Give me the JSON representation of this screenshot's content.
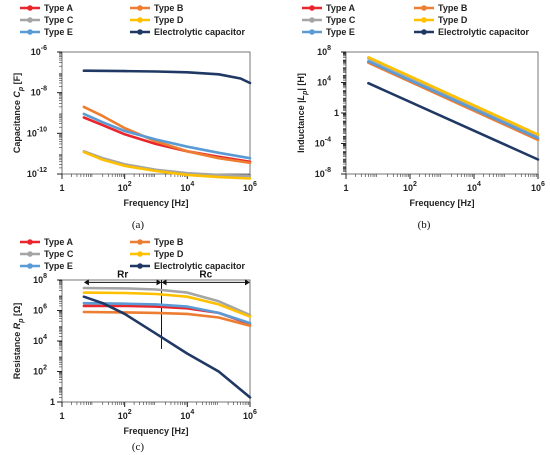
{
  "palette": {
    "Type A": "#e8262c",
    "Type B": "#ed7d31",
    "Type C": "#a5a5a5",
    "Type D": "#ffc000",
    "Type E": "#5b9bd5",
    "Electrolytic capacitor": "#203864"
  },
  "chart_data": [
    {
      "type": "line",
      "panel_label": "(a)",
      "xlabel": "Frequency  [Hz]",
      "ylabel_parts": [
        "Capacitance  ",
        "C",
        "p",
        "  [F]"
      ],
      "x_scale": "log",
      "y_scale": "log",
      "xlim": [
        1,
        1000000
      ],
      "ylim": [
        1e-12,
        1e-06
      ],
      "x_ticks": [
        {
          "v": 1,
          "b": "1",
          "e": ""
        },
        {
          "v": 100,
          "b": "10",
          "e": "2"
        },
        {
          "v": 10000,
          "b": "10",
          "e": "4"
        },
        {
          "v": 1000000,
          "b": "10",
          "e": "6"
        }
      ],
      "y_ticks": [
        {
          "v": 1e-12,
          "b": "10",
          "e": "-12"
        },
        {
          "v": 1e-10,
          "b": "10",
          "e": "-10"
        },
        {
          "v": 1e-08,
          "b": "10",
          "e": "-8"
        },
        {
          "v": 1e-06,
          "b": "10",
          "e": "-6"
        }
      ],
      "legend": "top",
      "series": [
        {
          "name": "Type A",
          "x": [
            5,
            20,
            100,
            1000,
            10000,
            100000,
            1000000
          ],
          "y": [
            6e-10,
            2.5e-10,
            9e-11,
            3e-11,
            1.3e-11,
            7e-12,
            4e-12
          ]
        },
        {
          "name": "Type B",
          "x": [
            5,
            20,
            100,
            1000,
            10000,
            100000,
            1000000
          ],
          "y": [
            2e-09,
            7e-10,
            1.8e-10,
            4e-11,
            1.3e-11,
            6e-12,
            3.5e-12
          ]
        },
        {
          "name": "Type C",
          "x": [
            5,
            20,
            100,
            1000,
            10000,
            100000,
            1000000
          ],
          "y": [
            1.3e-11,
            6e-12,
            3e-12,
            1.6e-12,
            1.1e-12,
            9e-13,
            8e-13
          ]
        },
        {
          "name": "Type D",
          "x": [
            5,
            20,
            100,
            1000,
            10000,
            100000,
            1000000
          ],
          "y": [
            1.2e-11,
            5e-12,
            2.5e-12,
            1.4e-12,
            9e-13,
            7e-13,
            6e-13
          ]
        },
        {
          "name": "Type E",
          "x": [
            5,
            20,
            100,
            1000,
            10000,
            100000,
            1000000
          ],
          "y": [
            9e-10,
            3.5e-10,
            1.3e-10,
            5e-11,
            2.2e-11,
            1.1e-11,
            6e-12
          ]
        },
        {
          "name": "Electrolytic capacitor",
          "x": [
            5,
            100,
            1000,
            10000,
            100000,
            500000,
            1000000
          ],
          "y": [
            1.2e-07,
            1.15e-07,
            1.1e-07,
            1e-07,
            8e-08,
            5e-08,
            3e-08
          ]
        }
      ]
    },
    {
      "type": "line",
      "panel_label": "(b)",
      "xlabel": "Frequency  [Hz]",
      "ylabel_parts": [
        "Inductance  |",
        "L",
        "p",
        "|  [H]"
      ],
      "x_scale": "log",
      "y_scale": "log",
      "xlim": [
        1,
        1000000
      ],
      "ylim": [
        1e-08,
        100000000.0
      ],
      "x_ticks": [
        {
          "v": 1,
          "b": "1",
          "e": ""
        },
        {
          "v": 100,
          "b": "10",
          "e": "2"
        },
        {
          "v": 10000,
          "b": "10",
          "e": "4"
        },
        {
          "v": 1000000,
          "b": "10",
          "e": "6"
        }
      ],
      "y_ticks": [
        {
          "v": 1e-08,
          "b": "10",
          "e": "-8"
        },
        {
          "v": 0.0001,
          "b": "10",
          "e": "-4"
        },
        {
          "v": 1,
          "b": "1",
          "e": ""
        },
        {
          "v": 10000,
          "b": "10",
          "e": "4"
        },
        {
          "v": 100000000,
          "b": "10",
          "e": "8"
        }
      ],
      "legend": "top",
      "series": [
        {
          "name": "Type A",
          "x": [
            5,
            1000000
          ],
          "y": [
            5000000.0,
            0.0004
          ]
        },
        {
          "name": "Type B",
          "x": [
            5,
            1000000
          ],
          "y": [
            4000000.0,
            0.0003
          ]
        },
        {
          "name": "Type C",
          "x": [
            5,
            1000000
          ],
          "y": [
            15000000.0,
            0.001
          ]
        },
        {
          "name": "Type D",
          "x": [
            5,
            1000000
          ],
          "y": [
            20000000.0,
            0.0015
          ]
        },
        {
          "name": "Type E",
          "x": [
            5,
            1000000
          ],
          "y": [
            6000000.0,
            0.0005
          ]
        },
        {
          "name": "Electrolytic capacitor",
          "x": [
            5,
            1000000
          ],
          "y": [
            8000,
            8e-07
          ]
        }
      ]
    },
    {
      "type": "line",
      "panel_label": "(c)",
      "xlabel": "Frequency  [Hz]",
      "ylabel_parts": [
        "Resistance  ",
        "R",
        "p",
        "  [Ω]"
      ],
      "x_scale": "log",
      "y_scale": "log",
      "xlim": [
        1,
        1000000
      ],
      "ylim": [
        1,
        100000000
      ],
      "x_ticks": [
        {
          "v": 1,
          "b": "1",
          "e": ""
        },
        {
          "v": 100,
          "b": "10",
          "e": "2"
        },
        {
          "v": 10000,
          "b": "10",
          "e": "4"
        },
        {
          "v": 1000000,
          "b": "10",
          "e": "6"
        }
      ],
      "y_ticks": [
        {
          "v": 1,
          "b": "1",
          "e": ""
        },
        {
          "v": 100,
          "b": "10",
          "e": "2"
        },
        {
          "v": 10000,
          "b": "10",
          "e": "4"
        },
        {
          "v": 1000000,
          "b": "10",
          "e": "6"
        },
        {
          "v": 100000000,
          "b": "10",
          "e": "8"
        }
      ],
      "legend": "top",
      "annotations": [
        {
          "text": "Rr",
          "from_x": 5,
          "to_x": 1500,
          "y": 70000000
        },
        {
          "text": "Rc",
          "from_x": 1500,
          "to_x": 1000000,
          "y": 70000000
        }
      ],
      "divider": {
        "x": 1500,
        "y_from": 100000000,
        "y_to": 3000
      },
      "series": [
        {
          "name": "Type A",
          "x": [
            5,
            100,
            1000,
            10000,
            100000,
            1000000
          ],
          "y": [
            2000000.0,
            2000000.0,
            1800000.0,
            1400000.0,
            700000.0,
            130000.0
          ]
        },
        {
          "name": "Type B",
          "x": [
            5,
            100,
            1000,
            10000,
            100000,
            1000000
          ],
          "y": [
            800000.0,
            750000.0,
            700000.0,
            600000.0,
            350000.0,
            100000.0
          ]
        },
        {
          "name": "Type C",
          "x": [
            5,
            100,
            1000,
            10000,
            100000,
            1000000
          ],
          "y": [
            30000000.0,
            28000000.0,
            24000000.0,
            15000000.0,
            4000000.0,
            500000.0
          ]
        },
        {
          "name": "Type D",
          "x": [
            5,
            100,
            1000,
            10000,
            100000,
            1000000
          ],
          "y": [
            15000000.0,
            14000000.0,
            12000000.0,
            8000000.0,
            2500000.0,
            400000.0
          ]
        },
        {
          "name": "Type E",
          "x": [
            5,
            100,
            1000,
            10000,
            100000,
            1000000
          ],
          "y": [
            3000000.0,
            2800000.0,
            2500000.0,
            1800000.0,
            700000.0,
            150000.0
          ]
        },
        {
          "name": "Electrolytic capacitor",
          "x": [
            5,
            20,
            100,
            1000,
            10000,
            100000,
            1000000
          ],
          "y": [
            8000000.0,
            3000000.0,
            600000.0,
            30000.0,
            1500,
            100,
            2
          ]
        }
      ]
    }
  ]
}
